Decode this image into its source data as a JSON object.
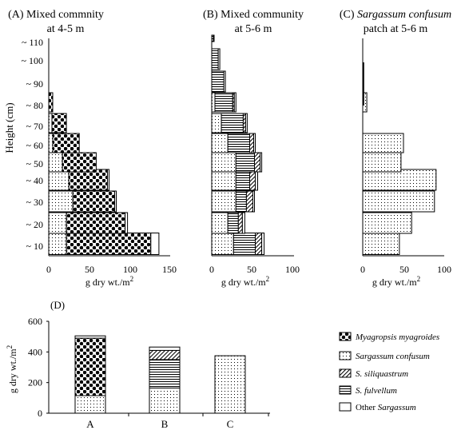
{
  "figure": {
    "panelA": {
      "title_line1": "(A) Mixed commnity",
      "title_line2": "at 4-5 m",
      "xlabel_prefix": "g dry wt./m",
      "xlabel_sup": "2",
      "ylabel": "Height (cm)"
    },
    "panelB": {
      "title_line1": "(B) Mixed community",
      "title_line2": "at 5-6 m",
      "xlabel_prefix": "g dry wt./m",
      "xlabel_sup": "2"
    },
    "panelC": {
      "title_prefix": "(C) ",
      "title_italic": "Sargassum confusum",
      "title_line2": "patch at 5-6 m",
      "xlabel_prefix": "g dry wt./m",
      "xlabel_sup": "2"
    },
    "panelD": {
      "label": "(D)",
      "ylabel_prefix": "g dry wt./m",
      "ylabel_sup": "2"
    }
  },
  "chart_data": [
    {
      "type": "bar",
      "orientation": "horizontal",
      "stacked": true,
      "title": "(A) Mixed commnity at 4-5 m",
      "xlabel": "g dry wt./m2",
      "ylabel": "Height (cm)",
      "xlim": [
        0,
        150
      ],
      "xticks": [
        "0",
        "50",
        "100",
        "150"
      ],
      "categories": [
        "10",
        "20",
        "30",
        "40",
        "50",
        "60",
        "70",
        "80"
      ],
      "series": [
        {
          "name": "Sargassum confusum",
          "values": [
            22,
            22,
            30,
            25,
            17,
            5,
            4,
            0
          ]
        },
        {
          "name": "Myagropsis myagroides",
          "values": [
            105,
            73,
            52,
            48,
            42,
            33,
            18,
            5
          ]
        },
        {
          "name": "Other Sargassum",
          "values": [
            10,
            3,
            2,
            2,
            0,
            0,
            0,
            0
          ]
        }
      ]
    },
    {
      "type": "bar",
      "orientation": "horizontal",
      "stacked": true,
      "title": "(B) Mixed community at 5-6 m",
      "xlabel": "g dry wt./m2",
      "xlim": [
        0,
        100
      ],
      "xticks": [
        "0",
        "50",
        "100"
      ],
      "categories": [
        "10",
        "20",
        "30",
        "40",
        "50",
        "60",
        "70",
        "80",
        "90",
        "100",
        "110"
      ],
      "series": [
        {
          "name": "Sargassum confusum",
          "values": [
            27,
            20,
            30,
            30,
            30,
            20,
            12,
            4,
            0,
            0,
            0
          ]
        },
        {
          "name": "S. fulvellum",
          "values": [
            27,
            13,
            13,
            17,
            23,
            27,
            27,
            22,
            15,
            8,
            2
          ]
        },
        {
          "name": "S. siliquastrum",
          "values": [
            8,
            5,
            8,
            7,
            7,
            5,
            3,
            2,
            0,
            0,
            0
          ]
        },
        {
          "name": "Myagropsis myagroides",
          "values": [
            0,
            0,
            0,
            0,
            0,
            0,
            0,
            0,
            0,
            0,
            0
          ]
        },
        {
          "name": "Other Sargassum",
          "values": [
            3,
            3,
            2,
            3,
            2,
            2,
            2,
            2,
            2,
            2,
            1
          ]
        }
      ]
    },
    {
      "type": "bar",
      "orientation": "horizontal",
      "stacked": true,
      "title": "(C) Sargassum confusum patch at 5-6 m",
      "xlabel": "g dry wt./m2",
      "xlim": [
        0,
        100
      ],
      "xticks": [
        "0",
        "50",
        "100"
      ],
      "categories": [
        "10",
        "20",
        "30",
        "40",
        "50",
        "60",
        "70",
        "80",
        "90",
        "100",
        "110"
      ],
      "series": [
        {
          "name": "Sargassum confusum",
          "values": [
            45,
            60,
            88,
            90,
            47,
            50,
            0,
            5,
            0,
            0,
            0
          ]
        }
      ],
      "annotations": [
        "vertical line at x≈0 from 80 to ~115 cm"
      ]
    },
    {
      "type": "bar",
      "stacked": true,
      "title": "(D)",
      "ylabel": "g dry wt./m2",
      "ylim": [
        0,
        600
      ],
      "yticks": [
        "0",
        "200",
        "400",
        "600"
      ],
      "categories": [
        "A",
        "B",
        "C"
      ],
      "series": [
        {
          "name": "Sargassum confusum",
          "values": [
            115,
            165,
            375
          ]
        },
        {
          "name": "S. fulvellum",
          "values": [
            0,
            185,
            0
          ]
        },
        {
          "name": "S. siliquastrum",
          "values": [
            0,
            60,
            0
          ]
        },
        {
          "name": "Myagropsis myagroides",
          "values": [
            375,
            0,
            0
          ]
        },
        {
          "name": "Other Sargassum",
          "values": [
            15,
            22,
            0
          ]
        }
      ]
    }
  ],
  "legend": {
    "items": [
      {
        "key": "mya",
        "name": "Myagropsis myagroides",
        "italic": true
      },
      {
        "key": "conf",
        "name": "Sargassum confusum",
        "italic": true
      },
      {
        "key": "sili",
        "name": "S. siliquastrum",
        "italic": true
      },
      {
        "key": "fulv",
        "name": "S. fulvellum",
        "italic": true
      },
      {
        "key": "other",
        "name_prefix": "Other ",
        "name_italic": "Sargassum"
      }
    ]
  },
  "colors": {
    "line": "#000000",
    "background": "#ffffff"
  }
}
